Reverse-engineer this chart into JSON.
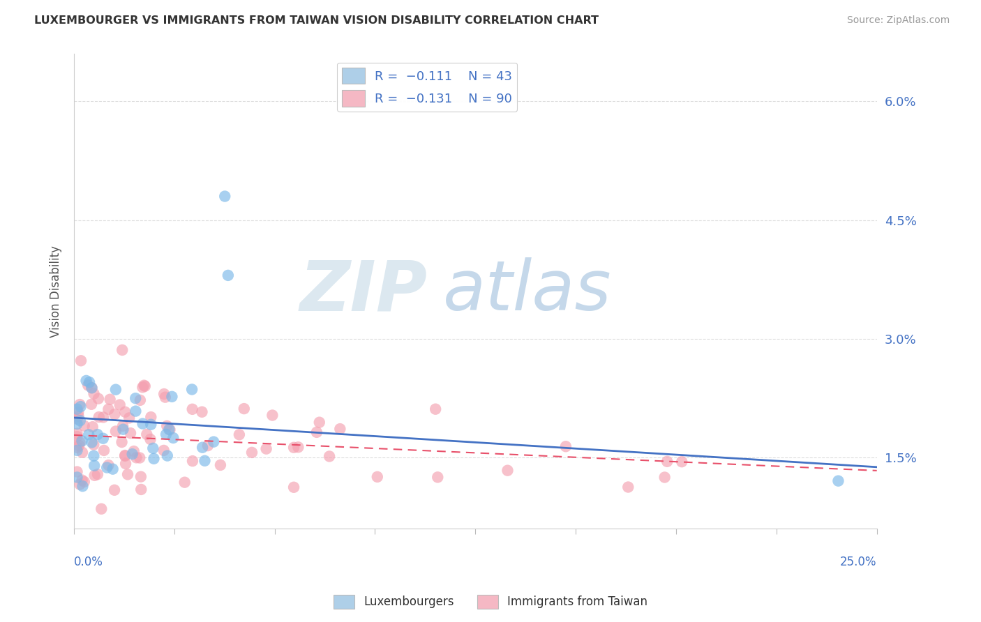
{
  "title": "LUXEMBOURGER VS IMMIGRANTS FROM TAIWAN VISION DISABILITY CORRELATION CHART",
  "source": "Source: ZipAtlas.com",
  "ylabel": "Vision Disability",
  "xlim": [
    0.0,
    0.25
  ],
  "ylim": [
    0.006,
    0.066
  ],
  "yticks": [
    0.015,
    0.03,
    0.045,
    0.06
  ],
  "ytick_labels": [
    "1.5%",
    "3.0%",
    "4.5%",
    "6.0%"
  ],
  "lux_color": "#7ab8e8",
  "taiwan_color": "#f4a0b0",
  "lux_line_color": "#4472c4",
  "taiwan_line_color": "#e8506a",
  "watermark_zip_color": "#e0e8f0",
  "watermark_atlas_color": "#c8d8e8",
  "lux_n": 43,
  "taiwan_n": 90,
  "background_color": "#ffffff",
  "grid_color": "#dddddd",
  "spine_color": "#cccccc"
}
